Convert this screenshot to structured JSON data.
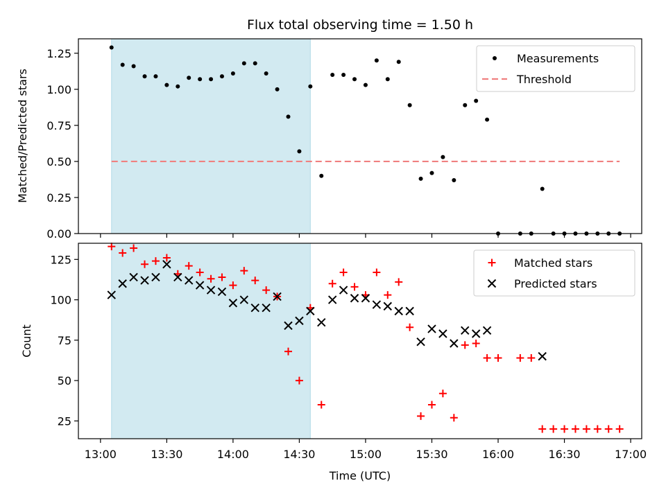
{
  "chart_data": [
    {
      "type": "scatter",
      "title": "Flux total observing time = 1.50 h",
      "xlabel": "",
      "ylabel": "Matched/Predicted stars",
      "ylim": [
        0.0,
        1.35
      ],
      "yticks": [
        "0.00",
        "0.25",
        "0.50",
        "0.75",
        "1.00",
        "1.25"
      ],
      "shaded_span": {
        "start": "13:05",
        "end": "14:35",
        "color": "#add8e6"
      },
      "legend_placement": "top-right",
      "series": [
        {
          "name": "Measurements",
          "marker": "dot",
          "color": "#000000",
          "x": [
            "13:05",
            "13:10",
            "13:15",
            "13:20",
            "13:25",
            "13:30",
            "13:35",
            "13:40",
            "13:45",
            "13:50",
            "13:55",
            "14:00",
            "14:05",
            "14:10",
            "14:15",
            "14:20",
            "14:25",
            "14:30",
            "14:35",
            "14:40",
            "14:45",
            "14:50",
            "14:55",
            "15:00",
            "15:05",
            "15:10",
            "15:15",
            "15:20",
            "15:25",
            "15:30",
            "15:35",
            "15:40",
            "15:45",
            "15:50",
            "15:55",
            "16:00",
            "16:05",
            "16:10",
            "16:15",
            "16:20",
            "16:25",
            "16:30",
            "16:35",
            "16:40",
            "16:45",
            "16:50",
            "16:55"
          ],
          "y": [
            1.29,
            1.17,
            1.16,
            1.09,
            1.09,
            1.03,
            1.02,
            1.08,
            1.07,
            1.07,
            1.09,
            1.11,
            1.18,
            1.18,
            1.11,
            1.0,
            0.81,
            0.57,
            1.02,
            0.4,
            1.1,
            1.1,
            1.07,
            1.03,
            1.2,
            1.07,
            1.19,
            0.89,
            0.38,
            0.42,
            0.53,
            0.37,
            0.89,
            0.92,
            0.79,
            0.0,
            null,
            0.0,
            0.0,
            0.31,
            0.0,
            0.0,
            0.0,
            0.0,
            0.0,
            0.0,
            0.0
          ]
        },
        {
          "name": "Threshold",
          "marker": "dashed-line",
          "color": "#f08080",
          "x": [
            "13:05",
            "16:55"
          ],
          "y": [
            0.5,
            0.5
          ]
        }
      ]
    },
    {
      "type": "scatter",
      "title": "",
      "xlabel": "Time (UTC)",
      "ylabel": "Count",
      "ylim": [
        14,
        135
      ],
      "yticks": [
        "25",
        "50",
        "75",
        "100",
        "125"
      ],
      "xticks": [
        "13:00",
        "13:30",
        "14:00",
        "14:30",
        "15:00",
        "15:30",
        "16:00",
        "16:30",
        "17:00"
      ],
      "shaded_span": {
        "start": "13:05",
        "end": "14:35",
        "color": "#add8e6"
      },
      "legend_placement": "top-right",
      "series": [
        {
          "name": "Matched stars",
          "marker": "plus",
          "color": "#ff0000",
          "x": [
            "13:05",
            "13:10",
            "13:15",
            "13:20",
            "13:25",
            "13:30",
            "13:35",
            "13:40",
            "13:45",
            "13:50",
            "13:55",
            "14:00",
            "14:05",
            "14:10",
            "14:15",
            "14:20",
            "14:25",
            "14:30",
            "14:35",
            "14:40",
            "14:45",
            "14:50",
            "14:55",
            "15:00",
            "15:05",
            "15:10",
            "15:15",
            "15:20",
            "15:25",
            "15:30",
            "15:35",
            "15:40",
            "15:45",
            "15:50",
            "15:55",
            "16:00",
            "16:10",
            "16:15",
            "16:20",
            "16:25",
            "16:30",
            "16:35",
            "16:40",
            "16:45",
            "16:50",
            "16:55"
          ],
          "y": [
            133,
            129,
            132,
            122,
            124,
            126,
            116,
            121,
            117,
            113,
            114,
            109,
            118,
            112,
            106,
            102,
            68,
            50,
            95,
            35,
            110,
            117,
            108,
            103,
            117,
            103,
            111,
            83,
            28,
            35,
            42,
            27,
            72,
            73,
            64,
            64,
            64,
            64,
            20,
            20,
            20,
            20,
            20,
            20,
            20,
            20
          ]
        },
        {
          "name": "Predicted stars",
          "marker": "x",
          "color": "#000000",
          "x": [
            "13:05",
            "13:10",
            "13:15",
            "13:20",
            "13:25",
            "13:30",
            "13:35",
            "13:40",
            "13:45",
            "13:50",
            "13:55",
            "14:00",
            "14:05",
            "14:10",
            "14:15",
            "14:20",
            "14:25",
            "14:30",
            "14:35",
            "14:40",
            "14:45",
            "14:50",
            "14:55",
            "15:00",
            "15:05",
            "15:10",
            "15:15",
            "15:20",
            "15:25",
            "15:30",
            "15:35",
            "15:40",
            "15:45",
            "15:50",
            "15:55",
            "16:20"
          ],
          "y": [
            103,
            110,
            114,
            112,
            114,
            122,
            114,
            112,
            109,
            106,
            105,
            98,
            100,
            95,
            95,
            102,
            84,
            87,
            93,
            86,
            100,
            106,
            101,
            101,
            97,
            96,
            93,
            93,
            74,
            82,
            79,
            73,
            81,
            79,
            81,
            65
          ]
        }
      ]
    }
  ]
}
